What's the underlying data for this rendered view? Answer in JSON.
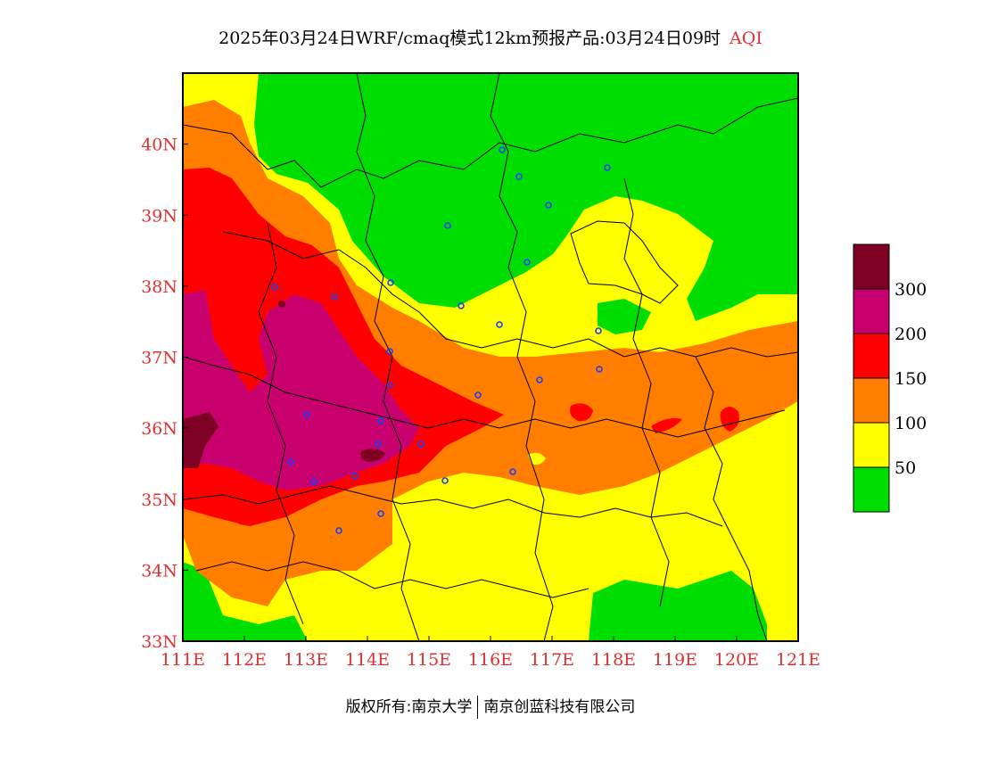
{
  "title": {
    "text": "2025年03月24日WRF/cmaq模式12km预报产品:03月24日09时",
    "variable": "AQI"
  },
  "map": {
    "lon_ticks": [
      "111E",
      "112E",
      "113E",
      "114E",
      "115E",
      "116E",
      "117E",
      "118E",
      "119E",
      "120E",
      "121E"
    ],
    "lat_ticks": [
      "33N",
      "34N",
      "35N",
      "36N",
      "37N",
      "38N",
      "39N",
      "40N"
    ],
    "lon_range": [
      111,
      121
    ],
    "lat_range": [
      33,
      41
    ]
  },
  "legend": {
    "labels": [
      "50",
      "100",
      "150",
      "200",
      "300"
    ],
    "colors": [
      "#00dd00",
      "#ffff00",
      "#ff7e00",
      "#ff0000",
      "#c8006e",
      "#7e0023"
    ]
  },
  "footer": {
    "left": "版权所有:南京大学",
    "right": "南京创蓝科技有限公司"
  }
}
